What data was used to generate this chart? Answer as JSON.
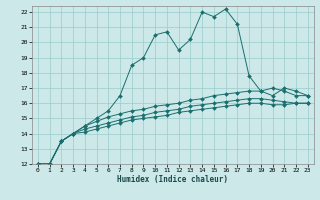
{
  "xlabel": "Humidex (Indice chaleur)",
  "background_color": "#cce8e8",
  "grid_color": "#99cccc",
  "line_color": "#1a6e6e",
  "xlim": [
    -0.5,
    23.5
  ],
  "ylim": [
    12,
    22.4
  ],
  "xticks": [
    0,
    1,
    2,
    3,
    4,
    5,
    6,
    7,
    8,
    9,
    10,
    11,
    12,
    13,
    14,
    15,
    16,
    17,
    18,
    19,
    20,
    21,
    22,
    23
  ],
  "yticks": [
    12,
    13,
    14,
    15,
    16,
    17,
    18,
    19,
    20,
    21,
    22
  ],
  "series": [
    {
      "x": [
        0,
        1,
        2,
        3,
        4,
        5,
        6,
        7,
        8,
        9,
        10,
        11,
        12,
        13,
        14,
        15,
        16,
        17,
        18,
        19,
        20,
        21,
        22,
        23
      ],
      "y": [
        12,
        12,
        13.5,
        14.0,
        14.5,
        15.0,
        15.5,
        16.5,
        18.5,
        19.0,
        20.5,
        20.7,
        19.5,
        20.2,
        22.0,
        21.7,
        22.2,
        21.2,
        17.8,
        16.8,
        16.5,
        17.0,
        16.8,
        16.5
      ]
    },
    {
      "x": [
        0,
        1,
        2,
        3,
        4,
        5,
        6,
        7,
        8,
        9,
        10,
        11,
        12,
        13,
        14,
        15,
        16,
        17,
        18,
        19,
        20,
        21,
        22,
        23
      ],
      "y": [
        12,
        12,
        13.5,
        14.0,
        14.5,
        14.8,
        15.1,
        15.3,
        15.5,
        15.6,
        15.8,
        15.9,
        16.0,
        16.2,
        16.3,
        16.5,
        16.6,
        16.7,
        16.8,
        16.8,
        17.0,
        16.8,
        16.5,
        16.5
      ]
    },
    {
      "x": [
        0,
        1,
        2,
        3,
        4,
        5,
        6,
        7,
        8,
        9,
        10,
        11,
        12,
        13,
        14,
        15,
        16,
        17,
        18,
        19,
        20,
        21,
        22,
        23
      ],
      "y": [
        12,
        12,
        13.5,
        14.0,
        14.3,
        14.5,
        14.7,
        14.9,
        15.1,
        15.2,
        15.4,
        15.5,
        15.6,
        15.8,
        15.9,
        16.0,
        16.1,
        16.2,
        16.3,
        16.3,
        16.2,
        16.1,
        16.0,
        16.0
      ]
    },
    {
      "x": [
        0,
        1,
        2,
        3,
        4,
        5,
        6,
        7,
        8,
        9,
        10,
        11,
        12,
        13,
        14,
        15,
        16,
        17,
        18,
        19,
        20,
        21,
        22,
        23
      ],
      "y": [
        12,
        12,
        13.5,
        14.0,
        14.1,
        14.3,
        14.5,
        14.7,
        14.9,
        15.0,
        15.1,
        15.2,
        15.4,
        15.5,
        15.6,
        15.7,
        15.8,
        15.9,
        16.0,
        16.0,
        15.9,
        15.9,
        16.0,
        16.0
      ]
    }
  ]
}
